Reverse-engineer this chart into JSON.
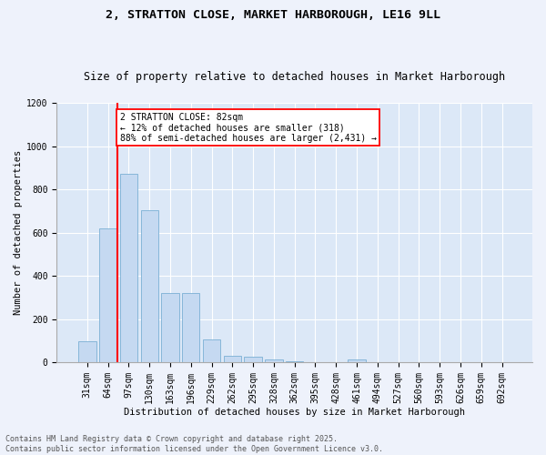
{
  "title1": "2, STRATTON CLOSE, MARKET HARBOROUGH, LE16 9LL",
  "title2": "Size of property relative to detached houses in Market Harborough",
  "xlabel": "Distribution of detached houses by size in Market Harborough",
  "ylabel": "Number of detached properties",
  "bar_labels": [
    "31sqm",
    "64sqm",
    "97sqm",
    "130sqm",
    "163sqm",
    "196sqm",
    "229sqm",
    "262sqm",
    "295sqm",
    "328sqm",
    "362sqm",
    "395sqm",
    "428sqm",
    "461sqm",
    "494sqm",
    "527sqm",
    "560sqm",
    "593sqm",
    "626sqm",
    "659sqm",
    "692sqm"
  ],
  "bar_values": [
    100,
    620,
    870,
    705,
    320,
    320,
    105,
    30,
    25,
    15,
    5,
    0,
    0,
    15,
    0,
    0,
    0,
    0,
    0,
    0,
    0
  ],
  "bar_color": "#c5d9f1",
  "bar_edge_color": "#7BAFD4",
  "vline_x": 1.45,
  "vline_color": "red",
  "annotation_text": "2 STRATTON CLOSE: 82sqm\n← 12% of detached houses are smaller (318)\n88% of semi-detached houses are larger (2,431) →",
  "annotation_box_color": "white",
  "annotation_box_edge": "red",
  "ylim": [
    0,
    1200
  ],
  "yticks": [
    0,
    200,
    400,
    600,
    800,
    1000,
    1200
  ],
  "footer1": "Contains HM Land Registry data © Crown copyright and database right 2025.",
  "footer2": "Contains public sector information licensed under the Open Government Licence v3.0.",
  "bg_color": "#eef2fb",
  "plot_bg_color": "#dce8f7",
  "title1_fontsize": 9.5,
  "title2_fontsize": 8.5,
  "ylabel_fontsize": 7.5,
  "xlabel_fontsize": 7.5,
  "tick_fontsize": 7,
  "footer_fontsize": 6,
  "annotation_fontsize": 7
}
